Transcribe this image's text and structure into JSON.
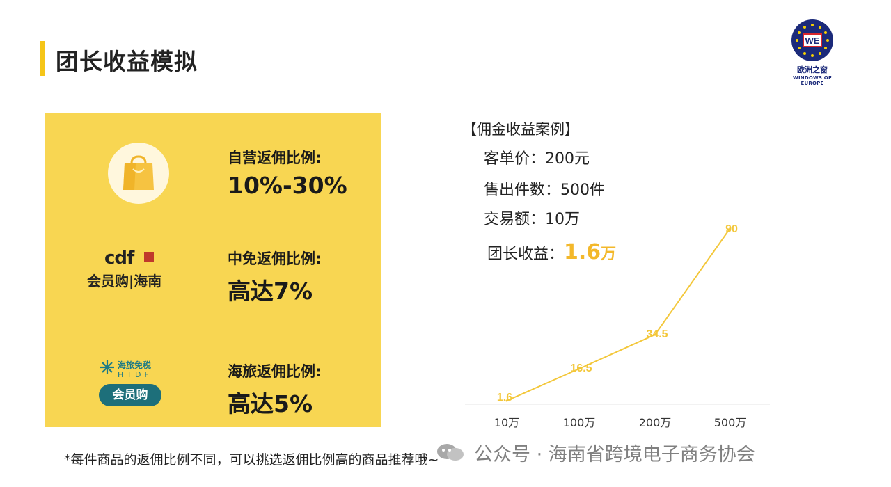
{
  "header": {
    "title": "团长收益模拟"
  },
  "logo": {
    "mark": "WE",
    "name_cn": "欧洲之窗",
    "name_en": "WINDOWS OF EUROPE"
  },
  "panel": {
    "rows": [
      {
        "icon": "shopping-bag-icon",
        "label": "自营返佣比例:",
        "value": "10%-30%"
      },
      {
        "brand_top": "cdf",
        "brand_bottom": "会员购|海南",
        "label": "中免返佣比例:",
        "value": "高达7%"
      },
      {
        "brand_name": "海旅免税",
        "brand_abbr": "HTDF",
        "brand_pill": "会员购",
        "label": "海旅返佣比例:",
        "value": "高达5%"
      }
    ]
  },
  "case": {
    "title": "【佣金收益案例】",
    "lines": [
      "客单价：200元",
      "售出件数：500件",
      "交易额：10万"
    ],
    "profit_label": "团长收益：",
    "profit_value": "1.6",
    "profit_unit": "万"
  },
  "chart_data": {
    "type": "line",
    "categories": [
      "10万",
      "100万",
      "200万",
      "500万"
    ],
    "values": [
      1.6,
      16.5,
      34.5,
      90
    ],
    "value_labels": [
      "1.6",
      "16.5",
      "34.5",
      "90"
    ],
    "color": "#f3c73a",
    "grid": false
  },
  "footnote": "*每件商品的返佣比例不同，可以挑选返佣比例高的商品推荐哦~",
  "watermark": {
    "text": "公众号 · 海南省跨境电子商务协会"
  }
}
